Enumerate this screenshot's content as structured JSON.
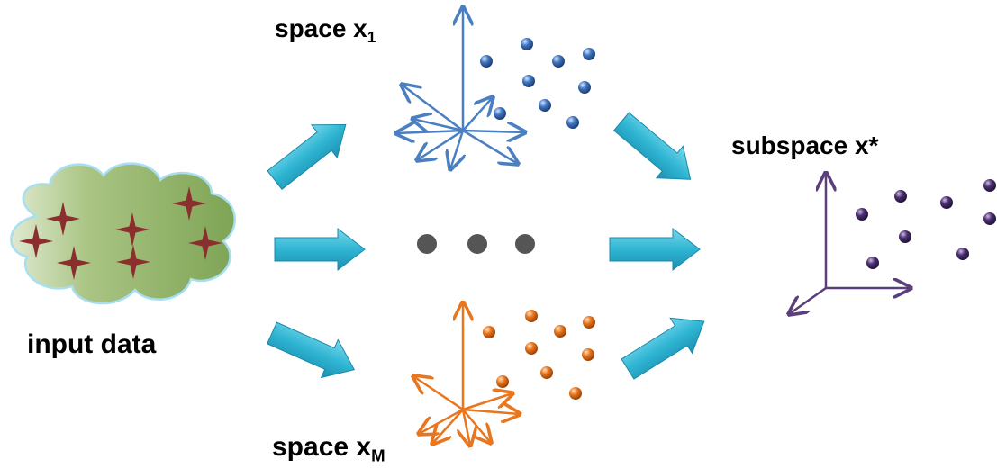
{
  "labels": {
    "space_1_prefix": "space  x",
    "space_1_sub": "1",
    "subspace": "subspace  x*",
    "input": "input data",
    "space_M_prefix": "space x",
    "space_M_sub": "M"
  },
  "colors": {
    "arrow_fill": "#2fb5d3",
    "arrow_edge": "#1a8aa8",
    "space_1": "#4a7fc0",
    "space_M": "#e8761e",
    "subspace": "#5b3f7a",
    "star": "#8b2e2e",
    "cloud_fill": "#8fb566",
    "cloud_edge": "#9fd3e6",
    "ellipsis": "#555555"
  },
  "icons": [
    "cloud-icon",
    "star-icon",
    "block-arrow-icon",
    "axes-icon"
  ]
}
